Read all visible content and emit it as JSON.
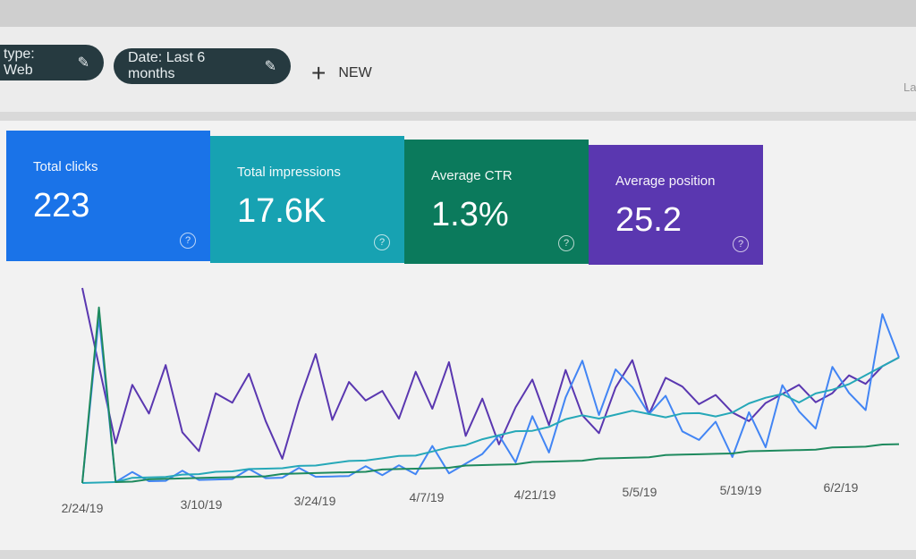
{
  "filters": [
    {
      "label": "type: Web",
      "icon": "pencil-icon"
    },
    {
      "label": "Date: Last 6 months",
      "icon": "pencil-icon"
    }
  ],
  "new_button": {
    "label": "NEW",
    "icon": "plus-icon"
  },
  "corner_text": "La",
  "cards": [
    {
      "label": "Total clicks",
      "value": "223",
      "color": "#1a73e8"
    },
    {
      "label": "Total impressions",
      "value": "17.6K",
      "color": "#17a2b2"
    },
    {
      "label": "Average CTR",
      "value": "1.3%",
      "color": "#0b7a5c"
    },
    {
      "label": "Average position",
      "value": "25.2",
      "color": "#5a37b0"
    }
  ],
  "help_glyph": "?",
  "chart_data": {
    "type": "line",
    "x_ticks": [
      "2/24/19",
      "3/10/19",
      "3/24/19",
      "4/7/19",
      "4/21/19",
      "5/5/19",
      "5/19/19",
      "6/2/19"
    ],
    "grid": false,
    "series": [
      {
        "name": "Average position",
        "color": "#5a37b0",
        "values": [
          100,
          60,
          20,
          50,
          35,
          60,
          25,
          15,
          45,
          40,
          55,
          30,
          10,
          40,
          65,
          30,
          50,
          40,
          45,
          30,
          55,
          35,
          60,
          20,
          40,
          15,
          35,
          50,
          25,
          55,
          30,
          20,
          45,
          60,
          30,
          50,
          45,
          35,
          40,
          30,
          25,
          35,
          40,
          45,
          35,
          40,
          50,
          45,
          55,
          60
        ]
      },
      {
        "name": "Total clicks",
        "color": "#4285f4",
        "values": [
          0,
          85,
          0,
          5,
          0,
          0,
          5,
          0,
          0,
          0,
          5,
          0,
          0,
          5,
          0,
          0,
          0,
          5,
          0,
          5,
          0,
          15,
          0,
          5,
          10,
          20,
          5,
          30,
          10,
          40,
          60,
          30,
          55,
          45,
          30,
          40,
          20,
          15,
          25,
          5,
          30,
          10,
          45,
          30,
          20,
          55,
          40,
          30,
          85,
          60
        ]
      },
      {
        "name": "Total impressions",
        "color": "#26a8b8",
        "values": [
          0,
          0,
          0,
          2,
          2,
          2,
          3,
          3,
          4,
          4,
          5,
          5,
          5,
          6,
          6,
          7,
          8,
          8,
          9,
          10,
          10,
          12,
          14,
          15,
          18,
          20,
          22,
          22,
          24,
          28,
          30,
          28,
          30,
          32,
          30,
          28,
          30,
          30,
          28,
          30,
          35,
          38,
          40,
          35,
          40,
          42,
          45,
          50,
          55,
          60
        ]
      },
      {
        "name": "Average CTR",
        "color": "#1e8a5e",
        "values": [
          0,
          90,
          0,
          0,
          1,
          1,
          1,
          1,
          1,
          1,
          1,
          1,
          2,
          2,
          2,
          2,
          2,
          2,
          3,
          3,
          3,
          3,
          3,
          4,
          4,
          4,
          4,
          5,
          5,
          5,
          5,
          6,
          6,
          6,
          6,
          7,
          7,
          7,
          7,
          7,
          8,
          8,
          8,
          8,
          8,
          9,
          9,
          9,
          10,
          10
        ]
      }
    ]
  }
}
